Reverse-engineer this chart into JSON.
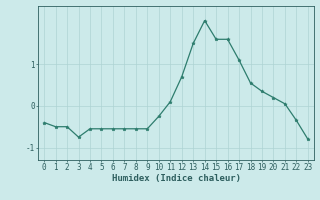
{
  "x": [
    0,
    1,
    2,
    3,
    4,
    5,
    6,
    7,
    8,
    9,
    10,
    11,
    12,
    13,
    14,
    15,
    16,
    17,
    18,
    19,
    20,
    21,
    22,
    23
  ],
  "y": [
    -0.4,
    -0.5,
    -0.5,
    -0.75,
    -0.55,
    -0.55,
    -0.55,
    -0.55,
    -0.55,
    -0.55,
    -0.25,
    0.1,
    0.7,
    1.5,
    2.05,
    1.6,
    1.6,
    1.1,
    0.55,
    0.35,
    0.2,
    0.05,
    -0.35,
    -0.8
  ],
  "line_color": "#2e7d6e",
  "bg_color": "#cceaea",
  "grid_color": "#aed4d4",
  "axis_color": "#2e5f5f",
  "xlabel": "Humidex (Indice chaleur)",
  "yticks": [
    -1,
    0,
    1
  ],
  "ylim": [
    -1.3,
    2.4
  ],
  "xlim": [
    -0.5,
    23.5
  ],
  "label_fontsize": 6.5,
  "tick_fontsize": 5.5
}
